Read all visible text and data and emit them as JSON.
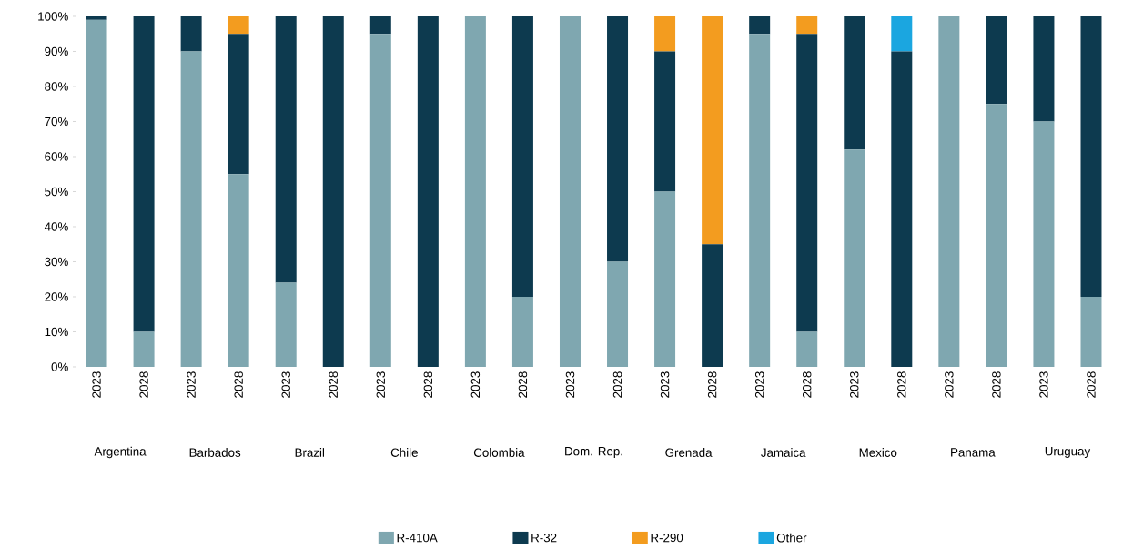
{
  "chart_data": {
    "type": "bar",
    "stacked": true,
    "legend": "bottom",
    "categories": [
      "2023",
      "2028",
      "2023",
      "2028",
      "2023",
      "2028",
      "2023",
      "2028",
      "2023",
      "2028",
      "2023",
      "2028",
      "2023",
      "2028",
      "2023",
      "2028",
      "2023",
      "2028",
      "2023",
      "2028",
      "2023",
      "2028"
    ],
    "annotations": [
      "Argentina",
      "Barbados",
      "Brazil",
      "Chile",
      "Colombia",
      "Dom. Rep.",
      "Grenada",
      "Jamaica",
      "Mexico",
      "Panama",
      "Uruguay"
    ],
    "series": [
      {
        "name": "R-410A",
        "color": "#7fa7b0",
        "values": [
          99,
          10,
          90,
          55,
          24,
          0,
          95,
          0,
          100,
          20,
          100,
          30,
          50,
          0,
          95,
          10,
          62,
          0,
          100,
          75,
          70,
          20
        ]
      },
      {
        "name": "R-32",
        "color": "#0d3a4f",
        "values": [
          1,
          90,
          10,
          40,
          76,
          100,
          5,
          100,
          0,
          80,
          0,
          70,
          40,
          35,
          5,
          85,
          38,
          90,
          0,
          25,
          30,
          80
        ]
      },
      {
        "name": "R-290",
        "color": "#f39c1f",
        "values": [
          0,
          0,
          0,
          5,
          0,
          0,
          0,
          0,
          0,
          0,
          0,
          0,
          10,
          65,
          0,
          5,
          0,
          0,
          0,
          0,
          0,
          0
        ]
      },
      {
        "name": "Other",
        "color": "#1ba6e0",
        "values": [
          0,
          0,
          0,
          0,
          0,
          0,
          0,
          0,
          0,
          0,
          0,
          0,
          0,
          0,
          0,
          0,
          0,
          10,
          0,
          0,
          0,
          0
        ]
      }
    ],
    "ylim": [
      0,
      100
    ],
    "yticks": [
      {
        "value": 0,
        "label": "0%"
      },
      {
        "value": 10,
        "label": "10%"
      },
      {
        "value": 20,
        "label": "20%"
      },
      {
        "value": 30,
        "label": "30%"
      },
      {
        "value": 40,
        "label": "40%"
      },
      {
        "value": 50,
        "label": "50%"
      },
      {
        "value": 60,
        "label": "60%"
      },
      {
        "value": 70,
        "label": "70%"
      },
      {
        "value": 80,
        "label": "80%"
      },
      {
        "value": 90,
        "label": "90%"
      },
      {
        "value": 100,
        "label": "100%"
      }
    ]
  }
}
